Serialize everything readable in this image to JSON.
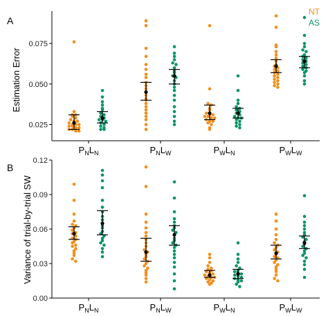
{
  "colors": {
    "NT": "#f28e1c",
    "AS": "#0a9466",
    "summary": "#000000"
  },
  "legend": [
    {
      "name": "NT",
      "color": "#f28e1c"
    },
    {
      "name": "AS",
      "color": "#0a9466"
    }
  ],
  "categories": [
    {
      "P": "N",
      "L": "N"
    },
    {
      "P": "N",
      "L": "W"
    },
    {
      "P": "W",
      "L": "N"
    },
    {
      "P": "W",
      "L": "W"
    }
  ],
  "chart_data": [
    {
      "type": "scatter",
      "panel_label": "A",
      "ylabel": "Estimation Error",
      "ylim": [
        0.015,
        0.095
      ],
      "yticks": [
        0.025,
        0.05,
        0.075
      ],
      "ytick_labels": [
        "0.025",
        "0.050",
        "0.075"
      ],
      "legend_placement": "top-right",
      "series": [
        {
          "name": "NT",
          "groups": [
            {
              "values": [
                0.076,
                0.033,
                0.031,
                0.031,
                0.03,
                0.029,
                0.028,
                0.027,
                0.027,
                0.026,
                0.025,
                0.025,
                0.025,
                0.024,
                0.024,
                0.023,
                0.023,
                0.022,
                0.022,
                0.021,
                0.021
              ],
              "mean": 0.026,
              "ci": [
                0.022,
                0.031
              ]
            },
            {
              "values": [
                0.089,
                0.086,
                0.072,
                0.067,
                0.062,
                0.059,
                0.056,
                0.054,
                0.051,
                0.049,
                0.047,
                0.045,
                0.043,
                0.041,
                0.04,
                0.038,
                0.036,
                0.034,
                0.032,
                0.03,
                0.028,
                0.025,
                0.022
              ],
              "mean": 0.045,
              "ci": [
                0.04,
                0.051
              ]
            },
            {
              "values": [
                0.086,
                0.047,
                0.038,
                0.037,
                0.035,
                0.034,
                0.032,
                0.031,
                0.031,
                0.03,
                0.03,
                0.029,
                0.029,
                0.028,
                0.027,
                0.027,
                0.026,
                0.025,
                0.023,
                0.022
              ],
              "mean": 0.032,
              "ci": [
                0.028,
                0.037
              ]
            },
            {
              "values": [
                0.092,
                0.085,
                0.074,
                0.073,
                0.07,
                0.068,
                0.066,
                0.064,
                0.062,
                0.061,
                0.06,
                0.059,
                0.058,
                0.057,
                0.056,
                0.055,
                0.054,
                0.053,
                0.052,
                0.051,
                0.05,
                0.049,
                0.048
              ],
              "mean": 0.061,
              "ci": [
                0.057,
                0.065
              ]
            }
          ]
        },
        {
          "name": "AS",
          "groups": [
            {
              "values": [
                0.046,
                0.042,
                0.039,
                0.037,
                0.035,
                0.034,
                0.032,
                0.031,
                0.03,
                0.029,
                0.028,
                0.028,
                0.027,
                0.026,
                0.025,
                0.024,
                0.023,
                0.022,
                0.022
              ],
              "mean": 0.029,
              "ci": [
                0.026,
                0.033
              ]
            },
            {
              "values": [
                0.073,
                0.069,
                0.067,
                0.065,
                0.063,
                0.062,
                0.06,
                0.058,
                0.057,
                0.055,
                0.054,
                0.052,
                0.05,
                0.048,
                0.046,
                0.043,
                0.04,
                0.036,
                0.033,
                0.03,
                0.027,
                0.025
              ],
              "mean": 0.055,
              "ci": [
                0.05,
                0.059
              ]
            },
            {
              "values": [
                0.055,
                0.046,
                0.04,
                0.038,
                0.036,
                0.035,
                0.034,
                0.033,
                0.032,
                0.031,
                0.03,
                0.029,
                0.029,
                0.028,
                0.027,
                0.026,
                0.025,
                0.024,
                0.023
              ],
              "mean": 0.032,
              "ci": [
                0.029,
                0.035
              ]
            },
            {
              "values": [
                0.091,
                0.08,
                0.075,
                0.073,
                0.071,
                0.07,
                0.068,
                0.067,
                0.066,
                0.065,
                0.064,
                0.063,
                0.062,
                0.061,
                0.06,
                0.059,
                0.058,
                0.057,
                0.055,
                0.052,
                0.05
              ],
              "mean": 0.064,
              "ci": [
                0.06,
                0.067
              ]
            }
          ]
        }
      ]
    },
    {
      "type": "scatter",
      "panel_label": "B",
      "ylabel": "Variance of trial-by-trial SW",
      "ylim": [
        0.0,
        0.12
      ],
      "yticks": [
        0.0,
        0.03,
        0.06,
        0.09,
        0.12
      ],
      "ytick_labels": [
        "0.00",
        "0.03",
        "0.06",
        "0.09",
        "0.12"
      ],
      "series": [
        {
          "name": "NT",
          "groups": [
            {
              "values": [
                0.099,
                0.085,
                0.073,
                0.067,
                0.064,
                0.063,
                0.061,
                0.059,
                0.057,
                0.056,
                0.054,
                0.052,
                0.051,
                0.049,
                0.048,
                0.046,
                0.045,
                0.043,
                0.041,
                0.039,
                0.037,
                0.034,
                0.032
              ],
              "mean": 0.056,
              "ci": [
                0.051,
                0.062
              ]
            },
            {
              "values": [
                0.114,
                0.097,
                0.073,
                0.066,
                0.061,
                0.057,
                0.054,
                0.051,
                0.048,
                0.045,
                0.042,
                0.04,
                0.038,
                0.036,
                0.034,
                0.032,
                0.03,
                0.028,
                0.026,
                0.024,
                0.022,
                0.02,
                0.017,
                0.014
              ],
              "mean": 0.04,
              "ci": [
                0.032,
                0.052
              ]
            },
            {
              "values": [
                0.038,
                0.035,
                0.031,
                0.028,
                0.026,
                0.025,
                0.024,
                0.023,
                0.022,
                0.021,
                0.02,
                0.019,
                0.018,
                0.018,
                0.017,
                0.016,
                0.015,
                0.014,
                0.013,
                0.012
              ],
              "mean": 0.02,
              "ci": [
                0.018,
                0.024
              ]
            },
            {
              "values": [
                0.073,
                0.067,
                0.06,
                0.055,
                0.051,
                0.048,
                0.046,
                0.044,
                0.042,
                0.04,
                0.038,
                0.036,
                0.035,
                0.033,
                0.031,
                0.029,
                0.027,
                0.025,
                0.023,
                0.02,
                0.017,
                0.015
              ],
              "mean": 0.039,
              "ci": [
                0.034,
                0.046
              ]
            }
          ]
        },
        {
          "name": "AS",
          "groups": [
            {
              "values": [
                0.111,
                0.107,
                0.102,
                0.096,
                0.085,
                0.079,
                0.075,
                0.071,
                0.068,
                0.065,
                0.063,
                0.061,
                0.058,
                0.056,
                0.054,
                0.052,
                0.05,
                0.048,
                0.046,
                0.043,
                0.04,
                0.036
              ],
              "mean": 0.065,
              "ci": [
                0.055,
                0.076
              ]
            },
            {
              "values": [
                0.101,
                0.087,
                0.075,
                0.069,
                0.066,
                0.063,
                0.061,
                0.059,
                0.057,
                0.055,
                0.052,
                0.05,
                0.048,
                0.046,
                0.044,
                0.041,
                0.038,
                0.035,
                0.031,
                0.027,
                0.021,
                0.015,
                0.008
              ],
              "mean": 0.055,
              "ci": [
                0.046,
                0.063
              ]
            },
            {
              "values": [
                0.048,
                0.038,
                0.034,
                0.031,
                0.028,
                0.026,
                0.024,
                0.023,
                0.022,
                0.021,
                0.02,
                0.019,
                0.018,
                0.017,
                0.016,
                0.015,
                0.014,
                0.012,
                0.01
              ],
              "mean": 0.021,
              "ci": [
                0.017,
                0.025
              ]
            },
            {
              "values": [
                0.089,
                0.071,
                0.066,
                0.063,
                0.06,
                0.057,
                0.055,
                0.053,
                0.051,
                0.049,
                0.047,
                0.045,
                0.043,
                0.041,
                0.039,
                0.037,
                0.035,
                0.032,
                0.029,
                0.025,
                0.018
              ],
              "mean": 0.048,
              "ci": [
                0.043,
                0.054
              ]
            }
          ]
        }
      ]
    }
  ]
}
